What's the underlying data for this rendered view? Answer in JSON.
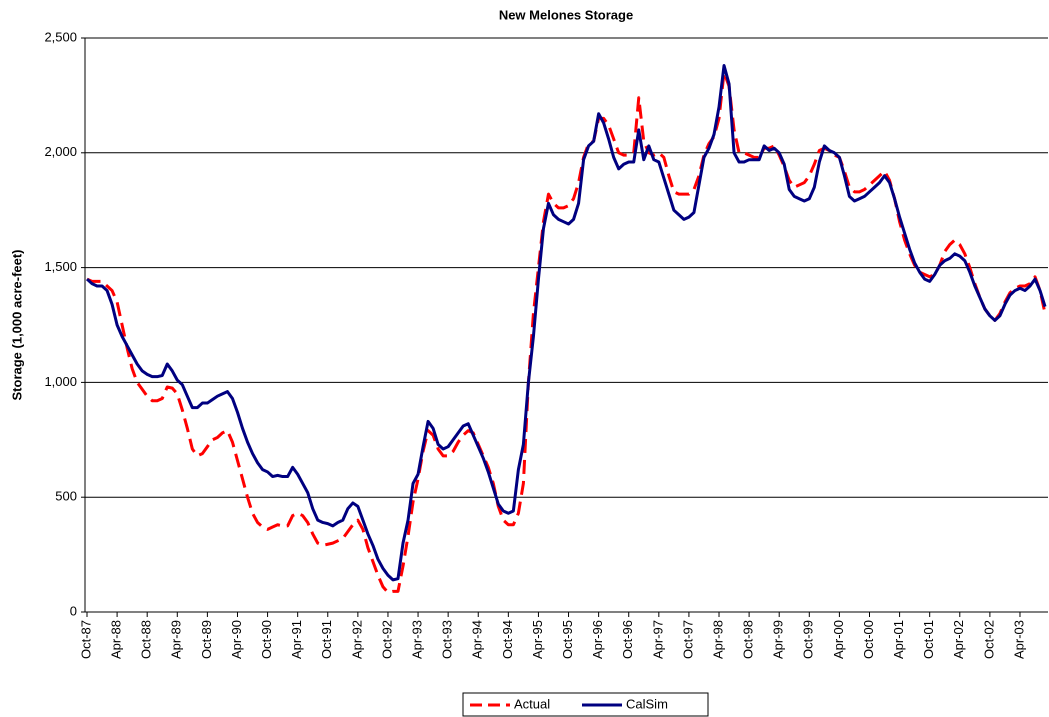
{
  "chart_data": {
    "type": "line",
    "title": "New Melones Storage",
    "y_label": "Storage (1,000 acre-feet)",
    "ylim": [
      0,
      2500
    ],
    "yticks": [
      0,
      500,
      {
        "value": 1000,
        "label": "1,000"
      },
      {
        "value": 1500,
        "label": "1,500"
      },
      {
        "value": 2000,
        "label": "2,000"
      },
      {
        "value": 2500,
        "label": "2,500"
      }
    ],
    "grid": true,
    "legend": "bottom",
    "categories": [
      "Oct-87",
      null,
      null,
      null,
      null,
      null,
      "Apr-88",
      null,
      null,
      null,
      null,
      null,
      "Oct-88",
      null,
      null,
      null,
      null,
      null,
      "Apr-89",
      null,
      null,
      null,
      null,
      null,
      "Oct-89",
      null,
      null,
      null,
      null,
      null,
      "Apr-90",
      null,
      null,
      null,
      null,
      null,
      "Oct-90",
      null,
      null,
      null,
      null,
      null,
      "Apr-91",
      null,
      null,
      null,
      null,
      null,
      "Oct-91",
      null,
      null,
      null,
      null,
      null,
      "Apr-92",
      null,
      null,
      null,
      null,
      null,
      "Oct-92",
      null,
      null,
      null,
      null,
      null,
      "Apr-93",
      null,
      null,
      null,
      null,
      null,
      "Oct-93",
      null,
      null,
      null,
      null,
      null,
      "Apr-94",
      null,
      null,
      null,
      null,
      null,
      "Oct-94",
      null,
      null,
      null,
      null,
      null,
      "Apr-95",
      null,
      null,
      null,
      null,
      null,
      "Oct-95",
      null,
      null,
      null,
      null,
      null,
      "Apr-96",
      null,
      null,
      null,
      null,
      null,
      "Oct-96",
      null,
      null,
      null,
      null,
      null,
      "Apr-97",
      null,
      null,
      null,
      null,
      null,
      "Oct-97",
      null,
      null,
      null,
      null,
      null,
      "Apr-98",
      null,
      null,
      null,
      null,
      null,
      "Oct-98",
      null,
      null,
      null,
      null,
      null,
      "Apr-99",
      null,
      null,
      null,
      null,
      null,
      "Oct-99",
      null,
      null,
      null,
      null,
      null,
      "Apr-00",
      null,
      null,
      null,
      null,
      null,
      "Oct-00",
      null,
      null,
      null,
      null,
      null,
      "Apr-01",
      null,
      null,
      null,
      null,
      null,
      "Oct-01",
      null,
      null,
      null,
      null,
      null,
      "Apr-02",
      null,
      null,
      null,
      null,
      null,
      "Oct-02",
      null,
      null,
      null,
      null,
      null,
      "Apr-03",
      null,
      null,
      null,
      null,
      null
    ],
    "series": [
      {
        "name": "Actual",
        "color": "#ff0000",
        "dashed": true,
        "values": [
          1450,
          1440,
          1440,
          1440,
          1420,
          1400,
          1350,
          1250,
          1150,
          1060,
          1000,
          970,
          940,
          920,
          920,
          930,
          980,
          975,
          950,
          880,
          800,
          710,
          680,
          690,
          720,
          750,
          760,
          780,
          790,
          740,
          660,
          580,
          500,
          430,
          390,
          370,
          360,
          370,
          380,
          375,
          375,
          420,
          430,
          420,
          390,
          340,
          300,
          290,
          295,
          300,
          310,
          320,
          350,
          380,
          400,
          360,
          280,
          220,
          160,
          110,
          85,
          90,
          90,
          200,
          330,
          480,
          580,
          700,
          790,
          770,
          710,
          680,
          680,
          700,
          740,
          770,
          790,
          780,
          730,
          680,
          630,
          560,
          460,
          400,
          380,
          380,
          430,
          560,
          1000,
          1300,
          1500,
          1700,
          1820,
          1780,
          1760,
          1760,
          1770,
          1800,
          1870,
          1980,
          2040,
          2050,
          2150,
          2150,
          2120,
          2060,
          2000,
          1990,
          1990,
          2000,
          2240,
          2050,
          2000,
          1990,
          2000,
          1980,
          1900,
          1830,
          1820,
          1820,
          1820,
          1840,
          1900,
          1990,
          2040,
          2070,
          2150,
          2350,
          2290,
          2100,
          2000,
          2000,
          1990,
          1980,
          1980,
          2020,
          2020,
          2030,
          1990,
          1940,
          1880,
          1850,
          1860,
          1870,
          1900,
          1950,
          2010,
          2020,
          2010,
          1990,
          1980,
          1920,
          1850,
          1830,
          1830,
          1840,
          1860,
          1880,
          1900,
          1920,
          1880,
          1800,
          1700,
          1620,
          1560,
          1510,
          1480,
          1470,
          1460,
          1470,
          1510,
          1570,
          1600,
          1620,
          1600,
          1560,
          1500,
          1430,
          1370,
          1320,
          1290,
          1270,
          1300,
          1350,
          1390,
          1410,
          1420,
          1420,
          1430,
          1460,
          1400,
          1300
        ]
      },
      {
        "name": "CalSim",
        "color": "#000080",
        "dashed": false,
        "values": [
          1450,
          1430,
          1420,
          1420,
          1400,
          1340,
          1250,
          1200,
          1160,
          1120,
          1080,
          1050,
          1035,
          1025,
          1025,
          1030,
          1080,
          1050,
          1010,
          990,
          940,
          890,
          890,
          910,
          910,
          925,
          940,
          950,
          960,
          930,
          870,
          800,
          740,
          690,
          650,
          620,
          610,
          590,
          595,
          590,
          590,
          630,
          600,
          560,
          520,
          450,
          400,
          390,
          385,
          375,
          390,
          400,
          450,
          475,
          460,
          400,
          340,
          290,
          230,
          190,
          160,
          140,
          145,
          300,
          400,
          560,
          600,
          720,
          830,
          800,
          730,
          710,
          720,
          750,
          780,
          810,
          820,
          770,
          720,
          670,
          610,
          540,
          470,
          440,
          430,
          440,
          620,
          730,
          1000,
          1200,
          1450,
          1670,
          1780,
          1730,
          1710,
          1700,
          1690,
          1710,
          1780,
          1970,
          2030,
          2050,
          2170,
          2130,
          2060,
          1980,
          1930,
          1950,
          1960,
          1960,
          2100,
          1970,
          2030,
          1970,
          1960,
          1890,
          1820,
          1750,
          1730,
          1710,
          1720,
          1740,
          1860,
          1980,
          2020,
          2080,
          2200,
          2380,
          2300,
          2000,
          1960,
          1960,
          1970,
          1970,
          1970,
          2030,
          2010,
          2020,
          2000,
          1950,
          1840,
          1810,
          1800,
          1790,
          1800,
          1850,
          1960,
          2030,
          2010,
          2000,
          1980,
          1900,
          1810,
          1790,
          1800,
          1810,
          1830,
          1850,
          1870,
          1900,
          1870,
          1800,
          1720,
          1650,
          1580,
          1520,
          1480,
          1450,
          1440,
          1470,
          1510,
          1530,
          1540,
          1560,
          1550,
          1530,
          1480,
          1420,
          1370,
          1320,
          1290,
          1270,
          1290,
          1340,
          1380,
          1400,
          1410,
          1400,
          1420,
          1450,
          1400,
          1330
        ]
      }
    ]
  }
}
